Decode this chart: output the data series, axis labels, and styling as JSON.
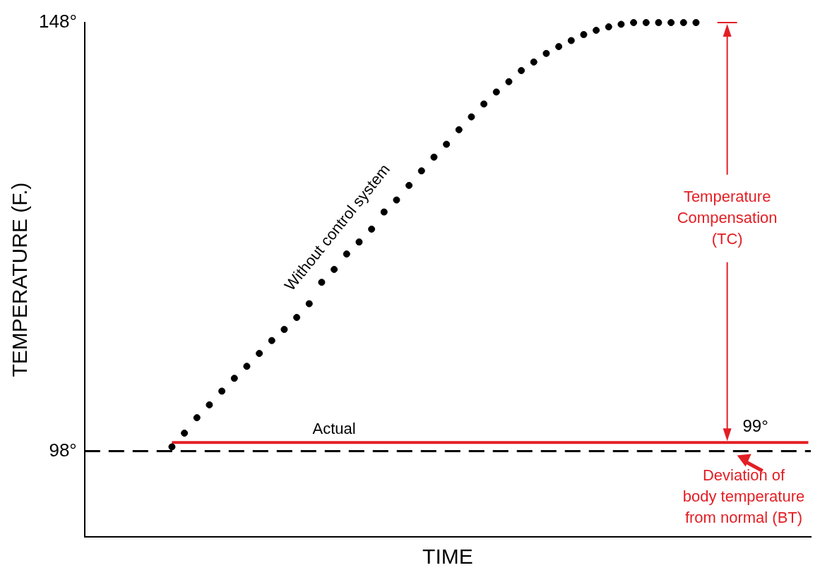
{
  "chart_data": {
    "type": "scatter",
    "xlabel": "TIME",
    "ylabel": "TEMPERATURE (F.)",
    "categories": [
      null,
      null,
      null,
      null,
      null,
      null,
      null,
      null,
      null,
      null,
      null,
      null,
      null,
      null,
      null,
      null,
      null,
      null,
      null,
      null,
      null,
      null,
      null,
      null,
      null,
      null,
      null,
      null,
      null,
      null,
      null,
      null,
      null,
      null,
      null,
      null,
      null,
      null,
      null,
      null,
      null,
      null,
      null,
      null,
      null,
      null,
      null,
      null,
      null,
      null,
      null,
      null
    ],
    "ylim": [
      88,
      148
    ],
    "yticks": [
      {
        "value": 98,
        "label": "98°"
      },
      {
        "value": 148,
        "label": "148°"
      }
    ],
    "tick_labels": "y",
    "grid": false,
    "legend": false,
    "series": [
      {
        "name": "Without control system",
        "marker": "circle",
        "color": "#000000",
        "values": [
          98.5,
          100.1,
          101.9,
          103.4,
          105,
          106.5,
          107.9,
          109.4,
          110.9,
          112.2,
          113.6,
          115.2,
          117.7,
          119.2,
          121,
          122.4,
          123.9,
          125.9,
          127.3,
          129,
          130.7,
          132.3,
          133.8,
          135.5,
          137,
          138.5,
          139.9,
          141.1,
          142.4,
          143.4,
          144.4,
          145.2,
          145.9,
          146.6,
          147.1,
          147.5,
          147.8,
          148,
          148,
          148,
          148,
          148,
          148,
          null,
          null,
          null,
          null,
          null,
          null,
          null,
          null,
          null
        ]
      },
      {
        "name": "Actual",
        "type": "line",
        "marker": "none",
        "line_style": "solid",
        "color": "#e31e24",
        "values": [
          99,
          99,
          99,
          99,
          99,
          99,
          99,
          99,
          99,
          99,
          99,
          99,
          99,
          99,
          99,
          99,
          99,
          99,
          99,
          99,
          99,
          99,
          99,
          99,
          99,
          99,
          99,
          99,
          99,
          99,
          99,
          99,
          99,
          99,
          99,
          99,
          99,
          99,
          99,
          99,
          99,
          99,
          99,
          99,
          99,
          99,
          99,
          99,
          99,
          99,
          99,
          99
        ]
      }
    ],
    "ref_lines": [
      {
        "axis": "y",
        "value": 98,
        "color": "#000000",
        "line_style": "dashed"
      }
    ],
    "annotations": [
      "Temperature\nCompensation\n(TC)",
      {
        "text": "99°",
        "y": 99
      },
      "Deviation of\nbody temperature\nfrom normal (BT)"
    ]
  }
}
